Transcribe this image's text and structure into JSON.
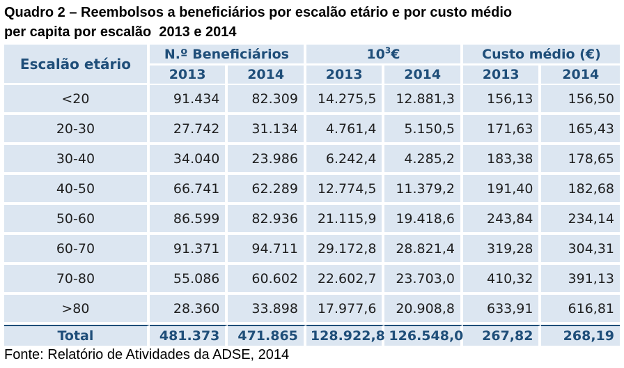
{
  "title": {
    "line1": "Quadro 2 – Reembolsos a beneficiários por escalão etário e por custo médio",
    "line2": "per capita por escalão  2013 e 2014"
  },
  "table": {
    "age_header": "Escalão etário",
    "group_headers": {
      "beneficiaries": "N.º Beneficiários",
      "amount_prefix": "10",
      "amount_sup": "3",
      "amount_suffix": "€",
      "avg_cost": "Custo médio (€)"
    },
    "years": [
      "2013",
      "2014",
      "2013",
      "2014",
      "2013",
      "2014"
    ],
    "rows": [
      {
        "age": "<20",
        "b2013": "91.434",
        "b2014": "82.309",
        "v2013": "14.275,5",
        "v2014": "12.881,3",
        "c2013": "156,13",
        "c2014": "156,50"
      },
      {
        "age": "20-30",
        "b2013": "27.742",
        "b2014": "31.134",
        "v2013": "4.761,4",
        "v2014": "5.150,5",
        "c2013": "171,63",
        "c2014": "165,43"
      },
      {
        "age": "30-40",
        "b2013": "34.040",
        "b2014": "23.986",
        "v2013": "6.242,4",
        "v2014": "4.285,2",
        "c2013": "183,38",
        "c2014": "178,65"
      },
      {
        "age": "40-50",
        "b2013": "66.741",
        "b2014": "62.289",
        "v2013": "12.774,5",
        "v2014": "11.379,2",
        "c2013": "191,40",
        "c2014": "182,68"
      },
      {
        "age": "50-60",
        "b2013": "86.599",
        "b2014": "82.936",
        "v2013": "21.115,9",
        "v2014": "19.418,6",
        "c2013": "243,84",
        "c2014": "234,14"
      },
      {
        "age": "60-70",
        "b2013": "91.371",
        "b2014": "94.711",
        "v2013": "29.172,8",
        "v2014": "28.821,4",
        "c2013": "319,28",
        "c2014": "304,31"
      },
      {
        "age": "70-80",
        "b2013": "55.086",
        "b2014": "60.602",
        "v2013": "22.602,7",
        "v2014": "23.703,0",
        "c2013": "410,32",
        "c2014": "391,13"
      },
      {
        "age": ">80",
        "b2013": "28.360",
        "b2014": "33.898",
        "v2013": "17.977,6",
        "v2014": "20.908,8",
        "c2013": "633,91",
        "c2014": "616,81"
      }
    ],
    "total": {
      "label": "Total",
      "b2013": "481.373",
      "b2014": "471.865",
      "v2013": "128.922,8",
      "v2014": "126.548,0",
      "c2013": "267,82",
      "c2014": "268,19"
    }
  },
  "source": "Fonte: Relatório de Atividades da ADSE, 2014",
  "colors": {
    "cell_bg": "#dce6f1",
    "header_text": "#1f4e79",
    "body_text": "#1f1f1f"
  }
}
